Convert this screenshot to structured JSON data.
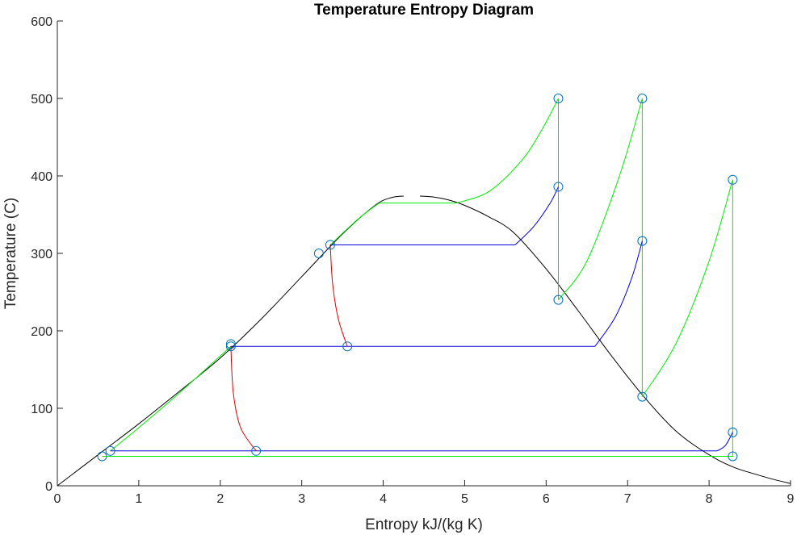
{
  "chart_data": {
    "type": "line",
    "title": "Temperature Entropy Diagram",
    "xlabel": "Entropy kJ/(kg K)",
    "ylabel": "Temperature (C)",
    "xlim": [
      0,
      9
    ],
    "ylim": [
      0,
      600
    ],
    "xticks": [
      "0",
      "1",
      "2",
      "3",
      "4",
      "5",
      "6",
      "7",
      "8",
      "9"
    ],
    "yticks": [
      "0",
      "100",
      "200",
      "300",
      "400",
      "500",
      "600"
    ],
    "grid": false,
    "legend": "none",
    "colors": {
      "dome": "#000000",
      "green": "#00ee00",
      "blue": "#0000dd",
      "red": "#dd0000",
      "marker": "#0072bd"
    },
    "series": [
      {
        "color": "dome",
        "x": [
          0,
          0.3,
          0.6,
          1.0,
          1.5,
          2.0,
          2.5,
          3.0,
          3.5,
          3.9,
          4.1,
          4.25
        ],
        "y": [
          0,
          24,
          48,
          80,
          122,
          165,
          215,
          270,
          325,
          362,
          372,
          374
        ]
      },
      {
        "color": "dome",
        "x": [
          4.45,
          4.6,
          4.8,
          5.0,
          5.3,
          5.6,
          6.0,
          6.4,
          6.8,
          7.2,
          7.6,
          8.0,
          8.3,
          8.6,
          8.8,
          9.0
        ],
        "y": [
          374,
          373,
          369,
          362,
          347,
          327,
          280,
          225,
          168,
          115,
          70,
          40,
          24,
          14,
          8,
          3
        ]
      },
      {
        "color": "green",
        "x": [
          0.55,
          8.3
        ],
        "y": [
          38,
          38
        ]
      },
      {
        "color": "green",
        "x": [
          0.65,
          1.0,
          1.5,
          2.13
        ],
        "y": [
          45,
          75,
          120,
          180
        ]
      },
      {
        "color": "green",
        "x": [
          3.35,
          3.7,
          3.95
        ],
        "y": [
          311,
          345,
          365
        ]
      },
      {
        "color": "green",
        "x": [
          3.95,
          4.9
        ],
        "y": [
          365,
          365
        ]
      },
      {
        "color": "green",
        "x": [
          4.9,
          5.3,
          5.7,
          5.95,
          6.15
        ],
        "y": [
          365,
          380,
          420,
          460,
          500
        ]
      },
      {
        "color": "green",
        "x": [
          6.15,
          6.15
        ],
        "y": [
          500,
          240
        ]
      },
      {
        "color": "green",
        "x": [
          6.15,
          6.5,
          6.9,
          7.18
        ],
        "y": [
          240,
          290,
          400,
          500
        ]
      },
      {
        "color": "green",
        "x": [
          7.18,
          7.18
        ],
        "y": [
          500,
          115
        ]
      },
      {
        "color": "green",
        "x": [
          7.18,
          7.6,
          8.0,
          8.29
        ],
        "y": [
          115,
          185,
          290,
          395
        ]
      },
      {
        "color": "green",
        "x": [
          8.29,
          8.29
        ],
        "y": [
          395,
          38
        ]
      },
      {
        "color": "blue",
        "x": [
          0.65,
          8.1
        ],
        "y": [
          45,
          45
        ]
      },
      {
        "color": "blue",
        "x": [
          8.1,
          8.2,
          8.29
        ],
        "y": [
          45,
          52,
          69
        ]
      },
      {
        "color": "blue",
        "x": [
          2.13,
          6.6
        ],
        "y": [
          180,
          180
        ]
      },
      {
        "color": "blue",
        "x": [
          6.6,
          6.85,
          7.05,
          7.18
        ],
        "y": [
          180,
          218,
          268,
          316
        ]
      },
      {
        "color": "blue",
        "x": [
          3.35,
          5.62
        ],
        "y": [
          311,
          311
        ]
      },
      {
        "color": "blue",
        "x": [
          5.62,
          5.85,
          6.05,
          6.15
        ],
        "y": [
          311,
          335,
          365,
          386
        ]
      },
      {
        "color": "red",
        "x": [
          2.13,
          2.16,
          2.25,
          2.44
        ],
        "y": [
          180,
          120,
          75,
          45
        ]
      },
      {
        "color": "red",
        "x": [
          3.35,
          3.38,
          3.45,
          3.56
        ],
        "y": [
          311,
          260,
          215,
          180
        ]
      }
    ],
    "markers": {
      "x": [
        0.55,
        0.65,
        2.13,
        2.13,
        2.44,
        3.21,
        3.35,
        3.56,
        6.15,
        6.15,
        6.15,
        7.18,
        7.18,
        7.18,
        8.29,
        8.29,
        8.29
      ],
      "y": [
        38,
        45,
        180,
        183,
        45,
        300,
        311,
        180,
        500,
        386,
        240,
        500,
        316,
        115,
        395,
        69,
        38
      ]
    }
  }
}
